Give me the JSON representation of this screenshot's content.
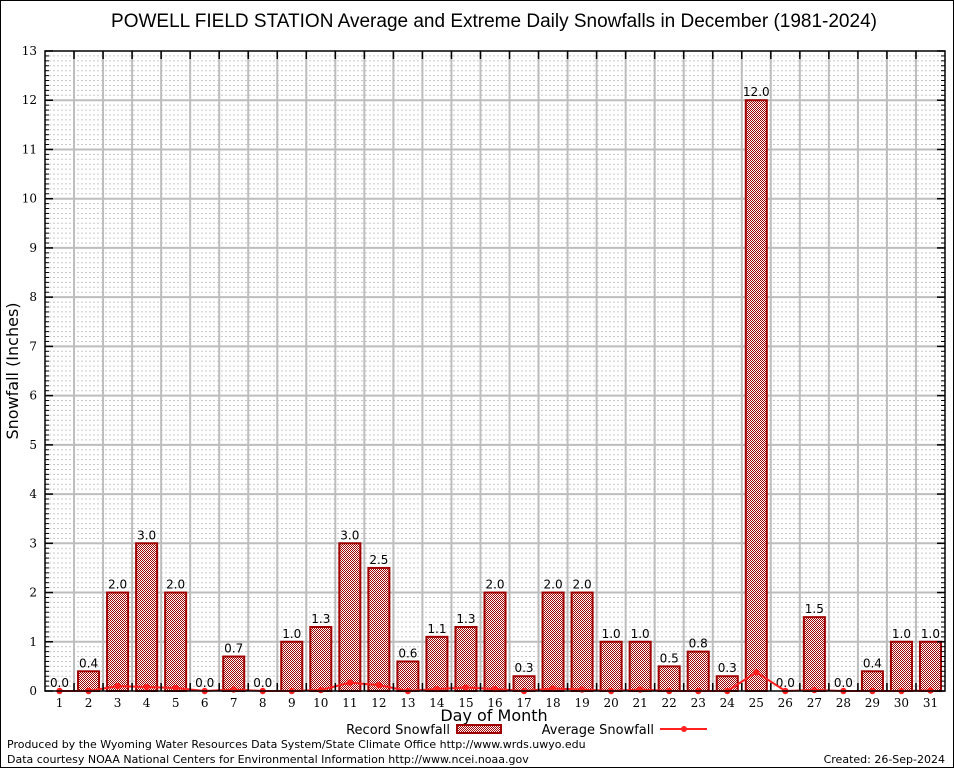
{
  "chart_data": {
    "type": "bar",
    "title": "POWELL FIELD STATION Average and Extreme Daily Snowfalls in December (1981-2024)",
    "xlabel": "Day of Month",
    "ylabel": "Snowfall (Inches)",
    "ylim": [
      0,
      13
    ],
    "yticks": [
      "0",
      "1",
      "2",
      "3",
      "4",
      "5",
      "6",
      "7",
      "8",
      "9",
      "10",
      "11",
      "12",
      "13"
    ],
    "categories": [
      "1",
      "2",
      "3",
      "4",
      "5",
      "6",
      "7",
      "8",
      "9",
      "10",
      "11",
      "12",
      "13",
      "14",
      "15",
      "16",
      "17",
      "18",
      "19",
      "20",
      "21",
      "22",
      "23",
      "24",
      "25",
      "26",
      "27",
      "28",
      "29",
      "30",
      "31"
    ],
    "grid": true,
    "series": [
      {
        "name": "Record Snowfall",
        "type": "bar",
        "color": "#a00000",
        "values": [
          0.0,
          0.4,
          2.0,
          3.0,
          2.0,
          0.0,
          0.7,
          0.0,
          1.0,
          1.3,
          3.0,
          2.5,
          0.6,
          1.1,
          1.3,
          2.0,
          0.3,
          2.0,
          2.0,
          1.0,
          1.0,
          0.5,
          0.8,
          0.3,
          12.0,
          0.0,
          1.5,
          0.0,
          0.4,
          1.0,
          1.0
        ],
        "labels": [
          "0.0",
          "0.4",
          "2.0",
          "3.0",
          "2.0",
          "0.0",
          "0.7",
          "0.0",
          "1.0",
          "1.3",
          "3.0",
          "2.5",
          "0.6",
          "1.1",
          "1.3",
          "2.0",
          "0.3",
          "2.0",
          "2.0",
          "1.0",
          "1.0",
          "0.5",
          "0.8",
          "0.3",
          "12.0",
          "0.0",
          "1.5",
          "0.0",
          "0.4",
          "1.0",
          "1.0"
        ]
      },
      {
        "name": "Average Snowfall",
        "type": "line",
        "color": "#ff2020",
        "values": [
          0.0,
          0.0,
          0.1,
          0.08,
          0.06,
          0.0,
          0.03,
          0.0,
          0.0,
          0.02,
          0.17,
          0.12,
          0.0,
          0.04,
          0.07,
          0.04,
          0.0,
          0.05,
          0.03,
          0.0,
          0.03,
          0.0,
          0.0,
          0.0,
          0.38,
          0.0,
          0.02,
          0.0,
          0.0,
          0.0,
          0.01
        ]
      }
    ],
    "legend": "bottom-center"
  },
  "footer": {
    "produced_by": "Produced by the Wyoming Water Resources Data System/State Climate Office http://www.wrds.uwyo.edu",
    "data_courtesy": "Data courtesy NOAA National Centers for Environmental Information http://www.ncei.noaa.gov",
    "created": "Created: 26-Sep-2024"
  }
}
